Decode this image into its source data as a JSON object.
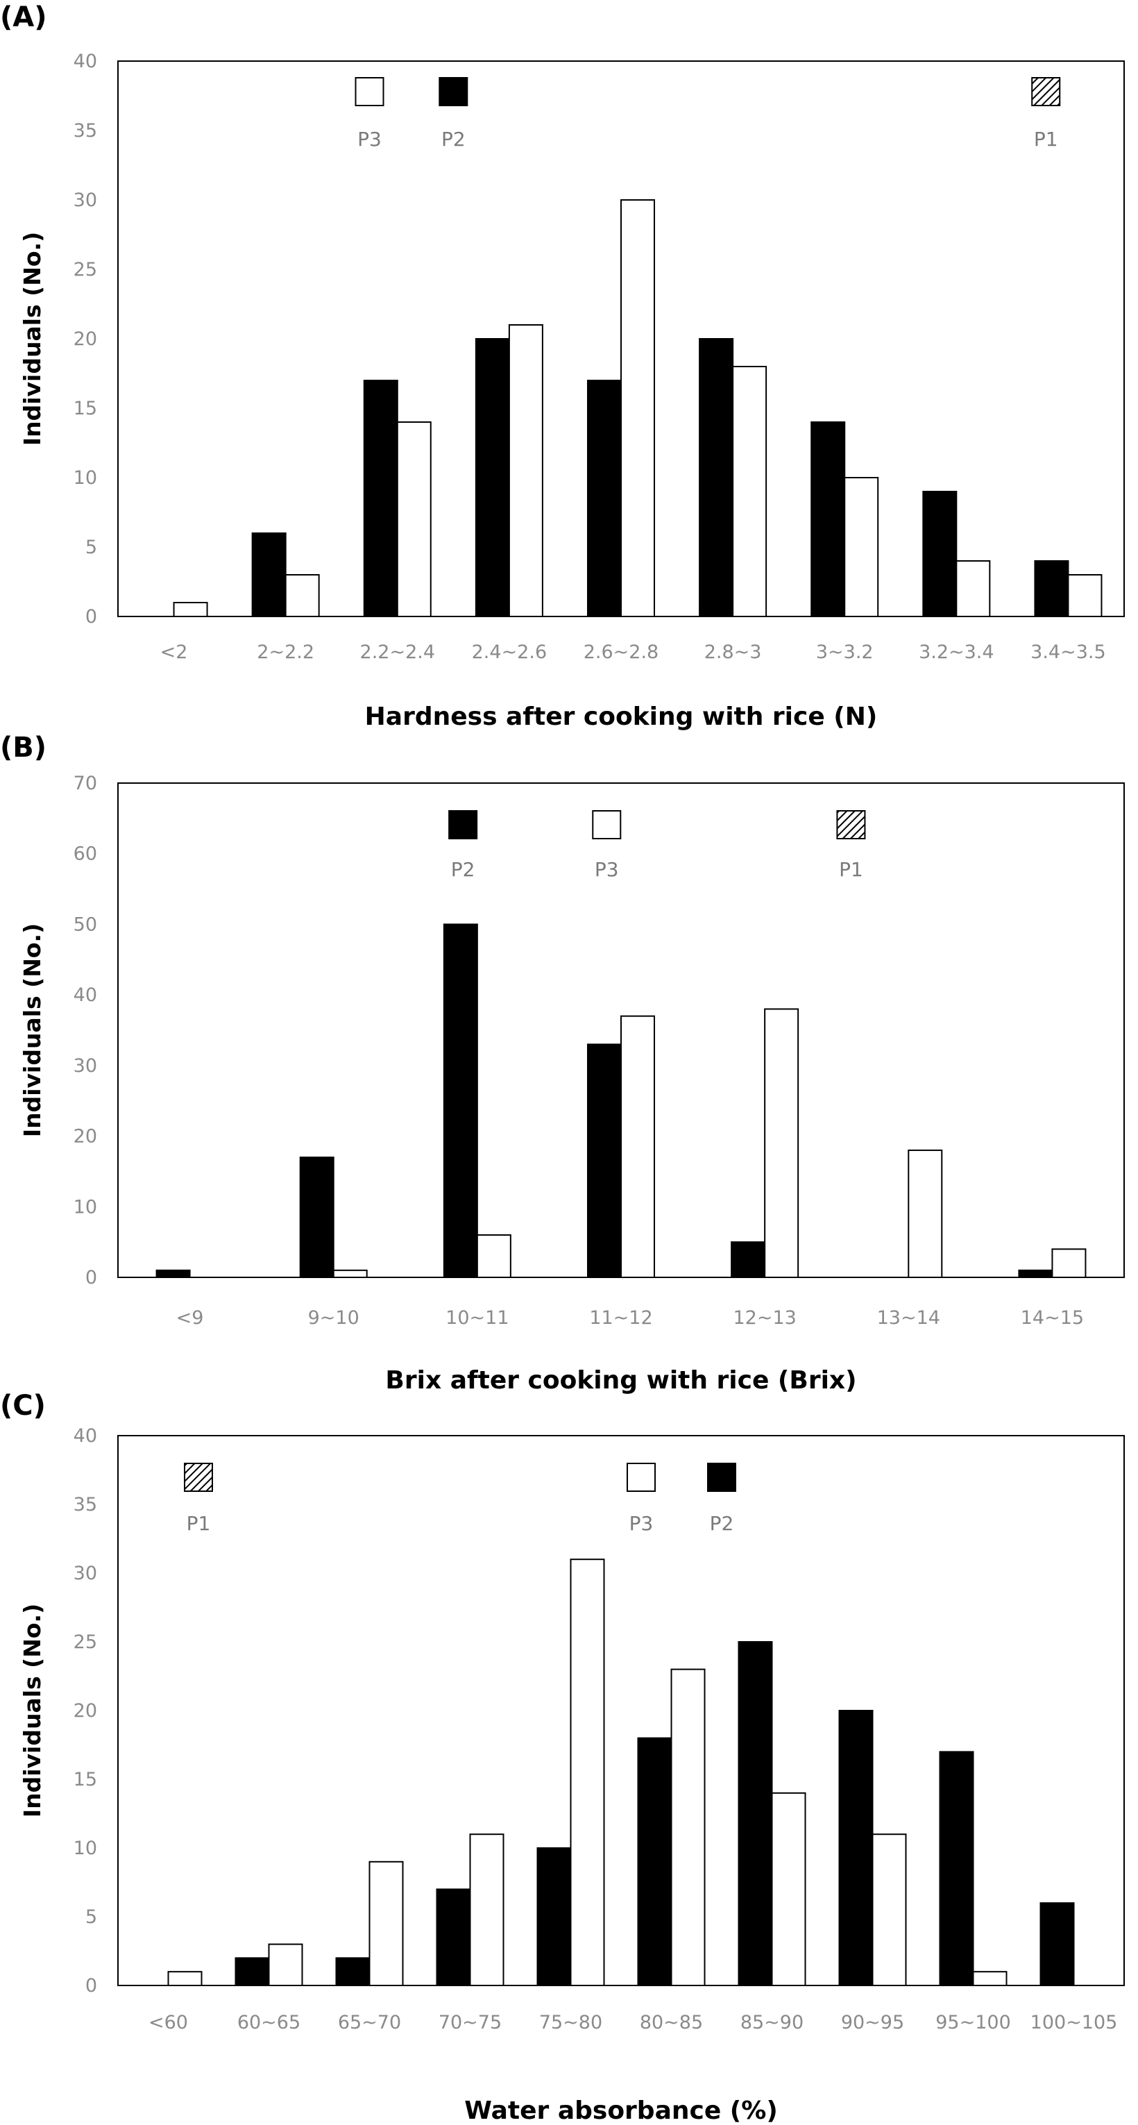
{
  "chart_data": [
    {
      "panel": "(A)",
      "type": "bar",
      "xlabel": "Hardness after cooking with rice (N)",
      "ylabel": "Individuals (No.)",
      "ylim": [
        0,
        40
      ],
      "yticks": [
        0,
        5,
        10,
        15,
        20,
        25,
        30,
        35,
        40
      ],
      "categories": [
        "<2",
        "2~2.2",
        "2.2~2.4",
        "2.4~2.6",
        "2.6~2.8",
        "2.8~3",
        "3~3.2",
        "3.2~3.4",
        "3.4~3.5"
      ],
      "series": [
        {
          "name": "P2",
          "fill": "#000000",
          "values": [
            0,
            6,
            17,
            20,
            17,
            20,
            14,
            9,
            4
          ]
        },
        {
          "name": "P3",
          "fill": "#ffffff",
          "values": [
            1,
            3,
            14,
            21,
            30,
            18,
            10,
            4,
            3
          ]
        }
      ],
      "markers": [
        {
          "label": "P3",
          "style": "white",
          "x": 2.25
        },
        {
          "label": "P2",
          "style": "black",
          "x": 3.0
        },
        {
          "label": "P1",
          "style": "hatch",
          "x": 8.3
        }
      ]
    },
    {
      "panel": "(B)",
      "type": "bar",
      "xlabel": "Brix after cooking with rice (Brix)",
      "ylabel": "Individuals (No.)",
      "ylim": [
        0,
        70
      ],
      "yticks": [
        0,
        10,
        20,
        30,
        40,
        50,
        60,
        70
      ],
      "categories": [
        "<9",
        "9~10",
        "10~11",
        "11~12",
        "12~13",
        "13~14",
        "14~15"
      ],
      "series": [
        {
          "name": "P2",
          "fill": "#000000",
          "values": [
            1,
            17,
            50,
            33,
            5,
            0,
            1
          ]
        },
        {
          "name": "P3",
          "fill": "#ffffff",
          "values": [
            0,
            1,
            6,
            37,
            38,
            18,
            4
          ]
        }
      ],
      "markers": [
        {
          "label": "P2",
          "style": "black",
          "x": 2.4
        },
        {
          "label": "P3",
          "style": "white",
          "x": 3.4
        },
        {
          "label": "P1",
          "style": "hatch",
          "x": 5.1
        }
      ]
    },
    {
      "panel": "(C)",
      "type": "bar",
      "xlabel": "Water absorbance (%)",
      "ylabel": "Individuals (No.)",
      "ylim": [
        0,
        40
      ],
      "yticks": [
        0,
        5,
        10,
        15,
        20,
        25,
        30,
        35,
        40
      ],
      "categories": [
        "<60",
        "60~65",
        "65~70",
        "70~75",
        "75~80",
        "80~85",
        "85~90",
        "90~95",
        "95~100",
        "100~105"
      ],
      "series": [
        {
          "name": "P2",
          "fill": "#000000",
          "values": [
            0,
            2,
            2,
            7,
            10,
            18,
            25,
            20,
            17,
            6
          ]
        },
        {
          "name": "P3",
          "fill": "#ffffff",
          "values": [
            1,
            3,
            9,
            11,
            31,
            23,
            14,
            11,
            1,
            0
          ]
        }
      ],
      "markers": [
        {
          "label": "P1",
          "style": "hatch",
          "x": 0.8
        },
        {
          "label": "P3",
          "style": "white",
          "x": 5.2
        },
        {
          "label": "P2",
          "style": "black",
          "x": 6.0
        }
      ]
    }
  ]
}
